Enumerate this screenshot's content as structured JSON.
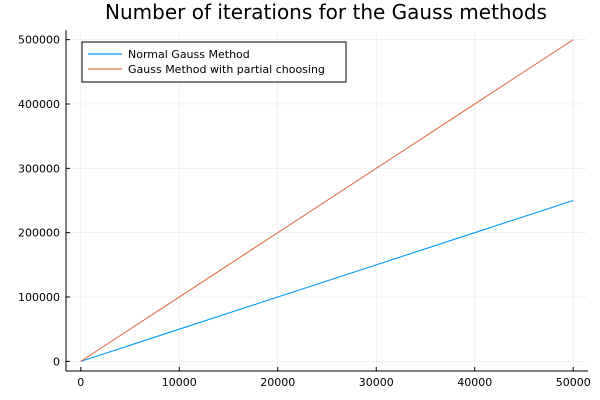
{
  "chart_data": {
    "type": "line",
    "title": "Number of iterations for the Gauss methods",
    "xlabel": "",
    "ylabel": "",
    "xlim": [
      -1500,
      51500
    ],
    "ylim": [
      -15000,
      515000
    ],
    "x_ticks": [
      0,
      10000,
      20000,
      30000,
      40000,
      50000
    ],
    "x_tick_labels": [
      "0",
      "10000",
      "20000",
      "30000",
      "40000",
      "50000"
    ],
    "y_ticks": [
      0,
      100000,
      200000,
      300000,
      400000,
      500000
    ],
    "y_tick_labels": [
      "0",
      "100000",
      "200000",
      "300000",
      "400000",
      "500000"
    ],
    "grid": true,
    "legend_position": "top-left",
    "series": [
      {
        "name": "Normal Gauss Method",
        "color": "#009AFA",
        "x": [
          0,
          10000,
          20000,
          30000,
          40000,
          50000
        ],
        "y": [
          0,
          50000,
          100000,
          150000,
          200000,
          250000
        ]
      },
      {
        "name": "Gauss Method with partial choosing",
        "color": "#E36F47",
        "x": [
          0,
          10000,
          20000,
          30000,
          40000,
          50000
        ],
        "y": [
          0,
          100000,
          200000,
          300000,
          400000,
          500000
        ]
      }
    ]
  }
}
